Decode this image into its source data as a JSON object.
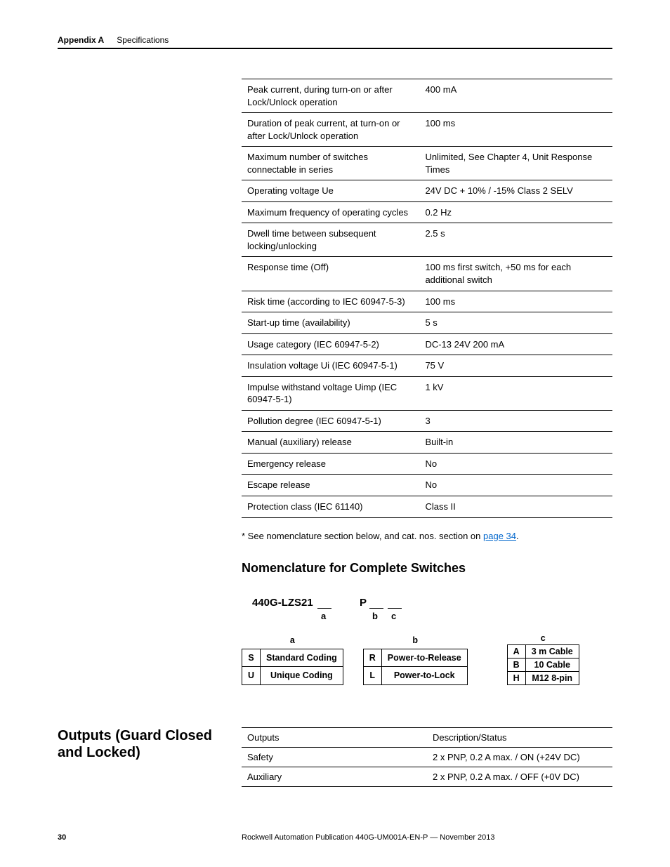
{
  "header": {
    "appendix": "Appendix A",
    "title": "Specifications"
  },
  "spec_table": [
    {
      "label": "Peak current, during turn-on or after Lock/Unlock operation",
      "value": "400 mA"
    },
    {
      "label": "Duration of peak current, at turn-on or after Lock/Unlock operation",
      "value": "100 ms"
    },
    {
      "label": "Maximum number of switches connectable in series",
      "value": "Unlimited, See Chapter 4, Unit Response Times"
    },
    {
      "label": "Operating voltage Ue",
      "value": "24V DC + 10% / -15% Class 2 SELV"
    },
    {
      "label": "Maximum frequency of operating cycles",
      "value": "0.2 Hz"
    },
    {
      "label": "Dwell time between subsequent locking/unlocking",
      "value": "2.5 s"
    },
    {
      "label": "Response time (Off)",
      "value": "100 ms first switch, +50 ms for each additional switch"
    },
    {
      "label": "Risk time (according to IEC 60947-5-3)",
      "value": "100 ms"
    },
    {
      "label": "Start-up time (availability)",
      "value": "5 s"
    },
    {
      "label": "Usage category (IEC 60947-5-2)",
      "value": "DC-13 24V 200 mA"
    },
    {
      "label": "Insulation voltage Ui (IEC 60947-5-1)",
      "value": "75 V"
    },
    {
      "label": "Impulse withstand voltage Uimp (IEC 60947-5-1)",
      "value": "1 kV"
    },
    {
      "label": "Pollution degree (IEC 60947-5-1)",
      "value": "3"
    },
    {
      "label": "Manual (auxiliary) release",
      "value": "Built-in"
    },
    {
      "label": "Emergency release",
      "value": "No"
    },
    {
      "label": "Escape release",
      "value": "No"
    },
    {
      "label": "Protection class (IEC 61140)",
      "value": "Class II"
    }
  ],
  "footnote": {
    "prefix": "* See nomenclature section below, and cat. nos. section on ",
    "link": "page 34",
    "suffix": "."
  },
  "nomen_heading": "Nomenclature for Complete Switches",
  "nomen": {
    "product": "440G-LZS21",
    "letters": {
      "a_under": "a",
      "b_under": "b",
      "c_under": "c",
      "P": "P"
    },
    "table_a": {
      "header": "a",
      "rows": [
        {
          "code": "S",
          "label": "Standard Coding"
        },
        {
          "code": "U",
          "label": "Unique Coding"
        }
      ]
    },
    "table_b": {
      "header": "b",
      "rows": [
        {
          "code": "R",
          "label": "Power-to-Release"
        },
        {
          "code": "L",
          "label": "Power-to-Lock"
        }
      ]
    },
    "table_c": {
      "header": "c",
      "rows": [
        {
          "code": "A",
          "label": "3 m Cable"
        },
        {
          "code": "B",
          "label": "10 Cable"
        },
        {
          "code": "H",
          "label": "M12 8-pin"
        }
      ]
    }
  },
  "outputs_heading": "Outputs (Guard Closed and Locked)",
  "outputs_table": {
    "header": {
      "c1": "Outputs",
      "c2": "Description/Status"
    },
    "rows": [
      {
        "c1": "Safety",
        "c2": "2 x PNP, 0.2 A max. / ON (+24V DC)"
      },
      {
        "c1": "Auxiliary",
        "c2": "2 x PNP, 0.2 A max. / OFF (+0V DC)"
      }
    ]
  },
  "footer": {
    "page": "30",
    "pub": "Rockwell Automation Publication 440G-UM001A-EN-P — November 2013"
  }
}
